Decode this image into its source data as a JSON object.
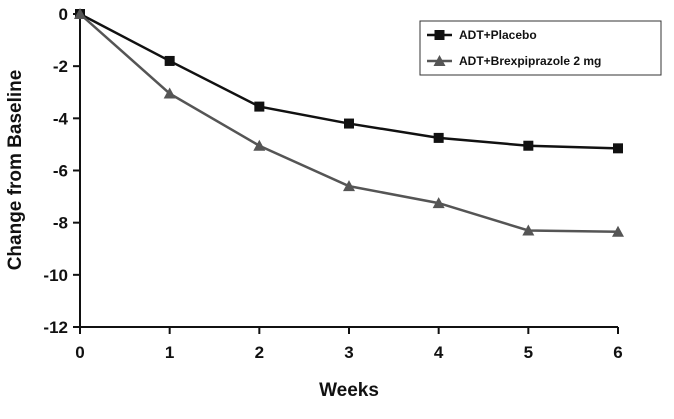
{
  "chart_data": {
    "type": "line",
    "title": "",
    "xlabel": "Weeks",
    "ylabel": "Change from Baseline",
    "x": [
      0,
      1,
      2,
      3,
      4,
      5,
      6
    ],
    "xlim": [
      0,
      6
    ],
    "ylim": [
      -12,
      0
    ],
    "xticks": [
      "0",
      "1",
      "2",
      "3",
      "4",
      "5",
      "6"
    ],
    "yticks": [
      "0",
      "-2",
      "-4",
      "-6",
      "-8",
      "-10",
      "-12"
    ],
    "grid": false,
    "legend_position": "top-right",
    "series": [
      {
        "name": "ADT+Placebo",
        "marker": "square",
        "color": "#111111",
        "values": [
          0,
          -1.8,
          -3.55,
          -4.2,
          -4.75,
          -5.05,
          -5.15
        ]
      },
      {
        "name": "ADT+Brexpiprazole 2 mg",
        "marker": "triangle",
        "color": "#555555",
        "values": [
          0,
          -3.05,
          -5.05,
          -6.6,
          -7.25,
          -8.3,
          -8.35
        ]
      }
    ]
  }
}
